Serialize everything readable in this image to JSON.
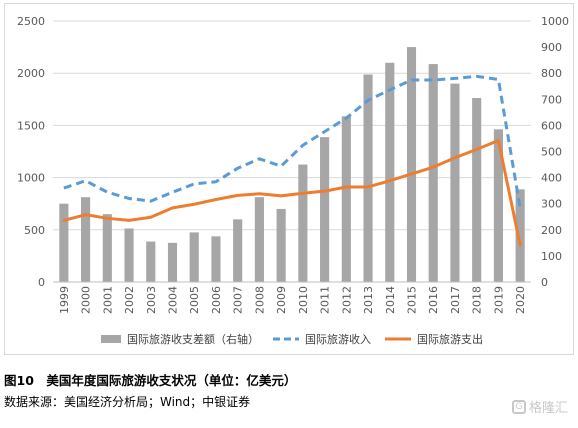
{
  "chart_data": {
    "type": "bar",
    "categories": [
      "1999",
      "2000",
      "2001",
      "2002",
      "2003",
      "2004",
      "2005",
      "2006",
      "2007",
      "2008",
      "2009",
      "2010",
      "2011",
      "2012",
      "2013",
      "2014",
      "2015",
      "2016",
      "2017",
      "2018",
      "2019",
      "2020"
    ],
    "series": [
      {
        "name": "国际旅游收支差额（右轴）",
        "type": "bar",
        "axis": "right",
        "color": "#a6a6a6",
        "values": [
          300,
          325,
          260,
          205,
          155,
          150,
          190,
          175,
          240,
          325,
          280,
          450,
          555,
          635,
          795,
          840,
          900,
          835,
          760,
          705,
          585,
          355
        ]
      },
      {
        "name": "国际旅游收入",
        "type": "line",
        "style": "dashed",
        "axis": "left",
        "color": "#5b9bd5",
        "values": [
          900,
          970,
          860,
          800,
          775,
          860,
          940,
          960,
          1090,
          1180,
          1110,
          1310,
          1440,
          1570,
          1740,
          1840,
          1935,
          1935,
          1950,
          1970,
          1940,
          710
        ]
      },
      {
        "name": "国际旅游支出",
        "type": "line",
        "style": "solid",
        "axis": "left",
        "color": "#ed7d31",
        "values": [
          590,
          645,
          610,
          590,
          620,
          710,
          745,
          790,
          830,
          845,
          825,
          850,
          870,
          910,
          910,
          970,
          1035,
          1100,
          1190,
          1270,
          1355,
          355
        ]
      }
    ],
    "left_axis": {
      "min": 0,
      "max": 2500,
      "ticks": [
        0,
        500,
        1000,
        1500,
        2000,
        2500
      ]
    },
    "right_axis": {
      "min": 0,
      "max": 1000,
      "ticks": [
        0,
        100,
        200,
        300,
        400,
        500,
        600,
        700,
        800,
        900,
        1000
      ]
    },
    "grid": true,
    "legend_position": "bottom"
  },
  "caption": "图10　美国年度国际旅游收支状况（单位：亿美元）",
  "source": "数据来源：美国经济分析局；Wind；中银证券",
  "watermark": {
    "text": "格隆汇",
    "icon": "glh-logo-icon"
  }
}
